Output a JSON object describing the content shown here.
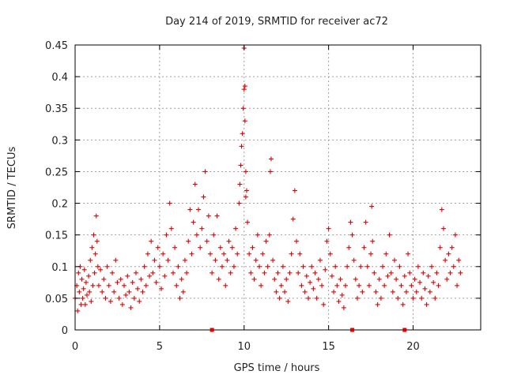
{
  "chart_data": {
    "type": "scatter",
    "title": "Day 214 of 2019, SRMTID for receiver ac72",
    "xlabel": "GPS time / hours",
    "ylabel": "SRMTID / TECUs",
    "xlim": [
      0,
      24
    ],
    "ylim": [
      0,
      0.45
    ],
    "xticks": [
      0,
      5,
      10,
      15,
      20
    ],
    "xtick_labels": [
      "0",
      "5",
      "10",
      "15",
      "20"
    ],
    "yticks": [
      0,
      0.05,
      0.1,
      0.15,
      0.2,
      0.25,
      0.3,
      0.35,
      0.4,
      0.45
    ],
    "ytick_labels": [
      "0",
      "0.05",
      "0.1",
      "0.15",
      "0.2",
      "0.25",
      "0.3",
      "0.35",
      "0.4",
      "0.45"
    ],
    "grid": true,
    "marker": "+",
    "color": "#e00000",
    "gap_markers_hours": [
      8.1,
      16.4,
      19.5
    ],
    "series": [
      {
        "name": "SRMTID",
        "points": [
          [
            0.0,
            0.05
          ],
          [
            0.1,
            0.07
          ],
          [
            0.15,
            0.03
          ],
          [
            0.2,
            0.09
          ],
          [
            0.25,
            0.06
          ],
          [
            0.3,
            0.1
          ],
          [
            0.35,
            0.04
          ],
          [
            0.4,
            0.08
          ],
          [
            0.45,
            0.05
          ],
          [
            0.5,
            0.065
          ],
          [
            0.55,
            0.095
          ],
          [
            0.6,
            0.04
          ],
          [
            0.65,
            0.075
          ],
          [
            0.7,
            0.055
          ],
          [
            0.8,
            0.085
          ],
          [
            0.85,
            0.06
          ],
          [
            0.9,
            0.11
          ],
          [
            0.95,
            0.045
          ],
          [
            1.0,
            0.13
          ],
          [
            1.05,
            0.07
          ],
          [
            1.1,
            0.15
          ],
          [
            1.15,
            0.09
          ],
          [
            1.2,
            0.12
          ],
          [
            1.25,
            0.18
          ],
          [
            1.3,
            0.14
          ],
          [
            1.35,
            0.1
          ],
          [
            1.4,
            0.07
          ],
          [
            1.5,
            0.095
          ],
          [
            1.6,
            0.06
          ],
          [
            1.7,
            0.08
          ],
          [
            1.8,
            0.05
          ],
          [
            1.9,
            0.1
          ],
          [
            2.0,
            0.07
          ],
          [
            2.1,
            0.045
          ],
          [
            2.2,
            0.09
          ],
          [
            2.3,
            0.06
          ],
          [
            2.4,
            0.11
          ],
          [
            2.5,
            0.075
          ],
          [
            2.6,
            0.05
          ],
          [
            2.7,
            0.08
          ],
          [
            2.8,
            0.04
          ],
          [
            2.9,
            0.07
          ],
          [
            3.0,
            0.055
          ],
          [
            3.1,
            0.085
          ],
          [
            3.2,
            0.06
          ],
          [
            3.3,
            0.035
          ],
          [
            3.4,
            0.075
          ],
          [
            3.5,
            0.05
          ],
          [
            3.6,
            0.09
          ],
          [
            3.7,
            0.065
          ],
          [
            3.8,
            0.045
          ],
          [
            3.9,
            0.08
          ],
          [
            4.0,
            0.06
          ],
          [
            4.1,
            0.1
          ],
          [
            4.2,
            0.07
          ],
          [
            4.3,
            0.12
          ],
          [
            4.4,
            0.085
          ],
          [
            4.5,
            0.14
          ],
          [
            4.6,
            0.09
          ],
          [
            4.7,
            0.11
          ],
          [
            4.8,
            0.075
          ],
          [
            4.9,
            0.13
          ],
          [
            5.0,
            0.1
          ],
          [
            5.1,
            0.065
          ],
          [
            5.2,
            0.12
          ],
          [
            5.3,
            0.085
          ],
          [
            5.4,
            0.15
          ],
          [
            5.5,
            0.11
          ],
          [
            5.6,
            0.2
          ],
          [
            5.7,
            0.16
          ],
          [
            5.8,
            0.09
          ],
          [
            5.9,
            0.13
          ],
          [
            6.0,
            0.07
          ],
          [
            6.1,
            0.1
          ],
          [
            6.2,
            0.05
          ],
          [
            6.3,
            0.08
          ],
          [
            6.4,
            0.06
          ],
          [
            6.5,
            0.11
          ],
          [
            6.6,
            0.09
          ],
          [
            6.7,
            0.14
          ],
          [
            6.8,
            0.19
          ],
          [
            6.9,
            0.12
          ],
          [
            7.0,
            0.17
          ],
          [
            7.1,
            0.23
          ],
          [
            7.2,
            0.15
          ],
          [
            7.3,
            0.19
          ],
          [
            7.4,
            0.13
          ],
          [
            7.5,
            0.16
          ],
          [
            7.6,
            0.21
          ],
          [
            7.7,
            0.25
          ],
          [
            7.8,
            0.14
          ],
          [
            7.9,
            0.18
          ],
          [
            8.0,
            0.12
          ],
          [
            8.1,
            0.09
          ],
          [
            8.2,
            0.15
          ],
          [
            8.3,
            0.11
          ],
          [
            8.4,
            0.18
          ],
          [
            8.5,
            0.08
          ],
          [
            8.6,
            0.13
          ],
          [
            8.7,
            0.1
          ],
          [
            8.8,
            0.12
          ],
          [
            8.9,
            0.07
          ],
          [
            9.0,
            0.11
          ],
          [
            9.1,
            0.14
          ],
          [
            9.2,
            0.09
          ],
          [
            9.3,
            0.13
          ],
          [
            9.4,
            0.1
          ],
          [
            9.5,
            0.16
          ],
          [
            9.6,
            0.12
          ],
          [
            9.7,
            0.2
          ],
          [
            9.75,
            0.23
          ],
          [
            9.8,
            0.26
          ],
          [
            9.85,
            0.29
          ],
          [
            9.9,
            0.31
          ],
          [
            9.95,
            0.35
          ],
          [
            10.0,
            0.38
          ],
          [
            10.0,
            0.445
          ],
          [
            10.05,
            0.33
          ],
          [
            10.05,
            0.385
          ],
          [
            10.1,
            0.25
          ],
          [
            10.1,
            0.21
          ],
          [
            10.15,
            0.22
          ],
          [
            10.2,
            0.17
          ],
          [
            10.3,
            0.12
          ],
          [
            10.4,
            0.09
          ],
          [
            10.5,
            0.13
          ],
          [
            10.6,
            0.08
          ],
          [
            10.7,
            0.11
          ],
          [
            10.8,
            0.15
          ],
          [
            10.9,
            0.1
          ],
          [
            11.0,
            0.07
          ],
          [
            11.1,
            0.12
          ],
          [
            11.2,
            0.09
          ],
          [
            11.3,
            0.14
          ],
          [
            11.4,
            0.1
          ],
          [
            11.5,
            0.15
          ],
          [
            11.55,
            0.25
          ],
          [
            11.6,
            0.27
          ],
          [
            11.7,
            0.11
          ],
          [
            11.8,
            0.08
          ],
          [
            11.9,
            0.06
          ],
          [
            12.0,
            0.09
          ],
          [
            12.1,
            0.05
          ],
          [
            12.2,
            0.07
          ],
          [
            12.3,
            0.1
          ],
          [
            12.4,
            0.06
          ],
          [
            12.5,
            0.08
          ],
          [
            12.6,
            0.045
          ],
          [
            12.7,
            0.09
          ],
          [
            12.8,
            0.12
          ],
          [
            12.9,
            0.175
          ],
          [
            13.0,
            0.22
          ],
          [
            13.1,
            0.14
          ],
          [
            13.2,
            0.09
          ],
          [
            13.3,
            0.12
          ],
          [
            13.4,
            0.07
          ],
          [
            13.5,
            0.1
          ],
          [
            13.6,
            0.06
          ],
          [
            13.7,
            0.085
          ],
          [
            13.8,
            0.05
          ],
          [
            13.9,
            0.075
          ],
          [
            14.0,
            0.1
          ],
          [
            14.1,
            0.065
          ],
          [
            14.2,
            0.09
          ],
          [
            14.3,
            0.05
          ],
          [
            14.4,
            0.08
          ],
          [
            14.5,
            0.11
          ],
          [
            14.6,
            0.07
          ],
          [
            14.7,
            0.04
          ],
          [
            14.8,
            0.095
          ],
          [
            14.9,
            0.14
          ],
          [
            15.0,
            0.16
          ],
          [
            15.1,
            0.12
          ],
          [
            15.2,
            0.085
          ],
          [
            15.3,
            0.06
          ],
          [
            15.4,
            0.1
          ],
          [
            15.5,
            0.07
          ],
          [
            15.6,
            0.045
          ],
          [
            15.7,
            0.08
          ],
          [
            15.8,
            0.055
          ],
          [
            15.9,
            0.035
          ],
          [
            16.0,
            0.07
          ],
          [
            16.1,
            0.1
          ],
          [
            16.2,
            0.13
          ],
          [
            16.3,
            0.17
          ],
          [
            16.4,
            0.15
          ],
          [
            16.5,
            0.11
          ],
          [
            16.6,
            0.08
          ],
          [
            16.7,
            0.05
          ],
          [
            16.8,
            0.07
          ],
          [
            16.9,
            0.1
          ],
          [
            17.0,
            0.06
          ],
          [
            17.1,
            0.13
          ],
          [
            17.2,
            0.17
          ],
          [
            17.3,
            0.1
          ],
          [
            17.4,
            0.07
          ],
          [
            17.5,
            0.12
          ],
          [
            17.55,
            0.195
          ],
          [
            17.6,
            0.14
          ],
          [
            17.7,
            0.09
          ],
          [
            17.8,
            0.06
          ],
          [
            17.9,
            0.04
          ],
          [
            18.0,
            0.08
          ],
          [
            18.1,
            0.05
          ],
          [
            18.2,
            0.1
          ],
          [
            18.3,
            0.07
          ],
          [
            18.4,
            0.12
          ],
          [
            18.5,
            0.085
          ],
          [
            18.6,
            0.15
          ],
          [
            18.7,
            0.09
          ],
          [
            18.8,
            0.06
          ],
          [
            18.9,
            0.11
          ],
          [
            19.0,
            0.08
          ],
          [
            19.1,
            0.05
          ],
          [
            19.2,
            0.1
          ],
          [
            19.3,
            0.07
          ],
          [
            19.4,
            0.04
          ],
          [
            19.5,
            0.085
          ],
          [
            19.6,
            0.06
          ],
          [
            19.7,
            0.12
          ],
          [
            19.8,
            0.09
          ],
          [
            19.9,
            0.07
          ],
          [
            20.0,
            0.05
          ],
          [
            20.1,
            0.08
          ],
          [
            20.2,
            0.06
          ],
          [
            20.3,
            0.1
          ],
          [
            20.4,
            0.075
          ],
          [
            20.5,
            0.05
          ],
          [
            20.6,
            0.09
          ],
          [
            20.7,
            0.065
          ],
          [
            20.8,
            0.04
          ],
          [
            20.9,
            0.085
          ],
          [
            21.0,
            0.06
          ],
          [
            21.1,
            0.1
          ],
          [
            21.2,
            0.075
          ],
          [
            21.3,
            0.05
          ],
          [
            21.4,
            0.09
          ],
          [
            21.5,
            0.07
          ],
          [
            21.6,
            0.13
          ],
          [
            21.7,
            0.19
          ],
          [
            21.8,
            0.16
          ],
          [
            21.9,
            0.11
          ],
          [
            22.0,
            0.08
          ],
          [
            22.1,
            0.12
          ],
          [
            22.2,
            0.09
          ],
          [
            22.3,
            0.13
          ],
          [
            22.4,
            0.1
          ],
          [
            22.5,
            0.15
          ],
          [
            22.6,
            0.07
          ],
          [
            22.7,
            0.11
          ],
          [
            22.8,
            0.09
          ]
        ]
      }
    ]
  }
}
